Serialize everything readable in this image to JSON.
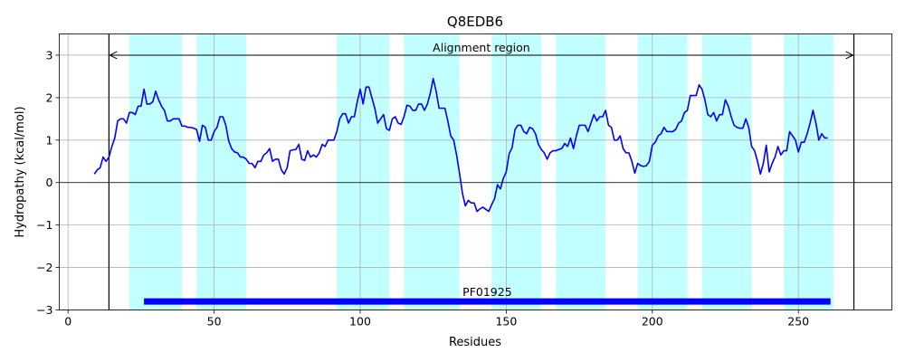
{
  "chart_data": {
    "type": "line",
    "title": "Q8EDB6",
    "xlabel": "Residues",
    "ylabel": "Hydropathy (kcal/mol)",
    "xlim": [
      -3,
      282
    ],
    "ylim": [
      -3,
      3.5
    ],
    "xticks": [
      0,
      50,
      100,
      150,
      200,
      250
    ],
    "yticks": [
      -3,
      -2,
      -1,
      0,
      1,
      2,
      3
    ],
    "ytick_labels": [
      "−3",
      "−2",
      "−1",
      "0",
      "1",
      "2",
      "3"
    ],
    "grid": true,
    "line_color": "#0000ff",
    "band_color": "#c2ffff",
    "domain_color": "#0000ff",
    "bands": [
      [
        21,
        39
      ],
      [
        44,
        61
      ],
      [
        92,
        110
      ],
      [
        115,
        134
      ],
      [
        145,
        162
      ],
      [
        167,
        184
      ],
      [
        195,
        212
      ],
      [
        217,
        234
      ],
      [
        245,
        262
      ]
    ],
    "alignment": {
      "label": "Alignment region",
      "start": 14,
      "end": 269
    },
    "domain": {
      "label": "PF01925",
      "start": 26,
      "end": 261,
      "y": -2.8
    },
    "series": [
      {
        "x": [
          9,
          10,
          11,
          12,
          13,
          14,
          15,
          16,
          17,
          18,
          19,
          20,
          21,
          22,
          23,
          24,
          25,
          26,
          27,
          28,
          29,
          30,
          31,
          32,
          33,
          34,
          35,
          36,
          37,
          38,
          39,
          40,
          41,
          42,
          43,
          44,
          45,
          46,
          47,
          48,
          49,
          50,
          51,
          52,
          53,
          54,
          55,
          56,
          57,
          58,
          59,
          60,
          61,
          62,
          63,
          64,
          65,
          66,
          67,
          68,
          69,
          70,
          71,
          72,
          73,
          74,
          75,
          76,
          77,
          78,
          79,
          80,
          81,
          82,
          83,
          84,
          85,
          86,
          87,
          88,
          89,
          90,
          91,
          92,
          93,
          94,
          95,
          96,
          97,
          98,
          99,
          100,
          101,
          102,
          103,
          104,
          105,
          106,
          107,
          108,
          109,
          110,
          111,
          112,
          113,
          114,
          115,
          116,
          117,
          118,
          119,
          120,
          121,
          122,
          123,
          124,
          125,
          126,
          127,
          128,
          129,
          130,
          131,
          132,
          133,
          134,
          135,
          136,
          137,
          138,
          139,
          140,
          141,
          142,
          143,
          144,
          145,
          146,
          147,
          148,
          149,
          150,
          151,
          152,
          153,
          154,
          155,
          156,
          157,
          158,
          159,
          160,
          161,
          162,
          163,
          164,
          165,
          166,
          167,
          168,
          169,
          170,
          171,
          172,
          173,
          174,
          175,
          176,
          177,
          178,
          179,
          180,
          181,
          182,
          183,
          184,
          185,
          186,
          187,
          188,
          189,
          190,
          191,
          192,
          193,
          194,
          195,
          196,
          197,
          198,
          199,
          200,
          201,
          202,
          203,
          204,
          205,
          206,
          207,
          208,
          209,
          210,
          211,
          212,
          213,
          214,
          215,
          216,
          217,
          218,
          219,
          220,
          221,
          222,
          223,
          224,
          225,
          226,
          227,
          228,
          229,
          230,
          231,
          232,
          233,
          234,
          235,
          236,
          237,
          238,
          239,
          240,
          241,
          242,
          243,
          244,
          245,
          246,
          247,
          248,
          249,
          250,
          251,
          252,
          253,
          254,
          255,
          256,
          257,
          258,
          259,
          260
        ],
        "y": [
          0.2,
          0.3,
          0.35,
          0.6,
          0.5,
          0.6,
          0.85,
          1.05,
          1.45,
          1.5,
          1.5,
          1.4,
          1.65,
          1.65,
          1.6,
          1.8,
          1.8,
          2.2,
          1.85,
          1.85,
          1.9,
          2.15,
          1.95,
          1.8,
          1.7,
          1.45,
          1.45,
          1.5,
          1.5,
          1.5,
          1.33,
          1.33,
          1.3,
          1.3,
          1.28,
          1.25,
          0.97,
          1.35,
          1.3,
          1.0,
          1.0,
          1.2,
          1.3,
          1.55,
          1.55,
          1.35,
          0.98,
          0.8,
          0.72,
          0.7,
          0.6,
          0.6,
          0.55,
          0.45,
          0.45,
          0.35,
          0.5,
          0.5,
          0.65,
          0.7,
          0.8,
          0.5,
          0.55,
          0.55,
          0.3,
          0.2,
          0.35,
          0.75,
          0.77,
          0.78,
          0.9,
          0.55,
          0.52,
          0.75,
          0.6,
          0.65,
          0.6,
          0.7,
          0.9,
          0.85,
          1.0,
          1.0,
          1.0,
          1.2,
          1.5,
          1.62,
          1.62,
          1.4,
          1.55,
          1.55,
          1.9,
          2.2,
          1.85,
          2.25,
          2.25,
          2.0,
          1.75,
          1.4,
          1.5,
          1.6,
          1.27,
          1.23,
          1.5,
          1.55,
          1.4,
          1.37,
          1.55,
          1.82,
          1.8,
          1.7,
          1.7,
          1.85,
          1.85,
          1.7,
          1.85,
          2.1,
          2.45,
          2.15,
          1.75,
          1.75,
          1.75,
          1.45,
          1.1,
          1.0,
          0.65,
          0.22,
          -0.25,
          -0.55,
          -0.42,
          -0.48,
          -0.48,
          -0.68,
          -0.62,
          -0.58,
          -0.63,
          -0.68,
          -0.52,
          -0.38,
          -0.05,
          -0.15,
          0.1,
          0.25,
          0.68,
          0.82,
          1.25,
          1.35,
          1.35,
          1.2,
          1.15,
          1.3,
          1.27,
          1.15,
          0.9,
          0.78,
          0.7,
          0.55,
          0.7,
          0.75,
          0.75,
          0.78,
          0.8,
          0.92,
          0.85,
          1.05,
          0.8,
          1.1,
          1.35,
          1.35,
          1.35,
          1.2,
          1.4,
          1.6,
          1.45,
          1.55,
          1.55,
          1.7,
          1.35,
          1.3,
          1.0,
          1.0,
          1.1,
          0.8,
          0.7,
          0.7,
          0.5,
          0.22,
          0.45,
          0.4,
          0.38,
          0.4,
          0.5,
          0.88,
          0.95,
          1.1,
          1.15,
          1.3,
          1.2,
          1.2,
          1.2,
          1.25,
          1.4,
          1.45,
          1.65,
          1.7,
          2.05,
          2.05,
          2.05,
          2.3,
          2.2,
          1.95,
          1.6,
          1.55,
          1.65,
          1.45,
          1.6,
          1.6,
          1.95,
          1.8,
          1.55,
          1.35,
          1.3,
          1.28,
          1.28,
          1.5,
          1.3,
          0.85,
          0.75,
          0.5,
          0.2,
          0.45,
          0.88,
          0.25,
          0.45,
          0.6,
          0.85,
          0.65,
          0.75,
          0.75,
          1.2,
          1.1,
          1.0,
          0.72,
          0.95,
          0.95,
          1.15,
          1.4,
          1.7,
          1.4,
          1.0,
          1.15,
          1.05,
          1.05
        ]
      }
    ]
  }
}
